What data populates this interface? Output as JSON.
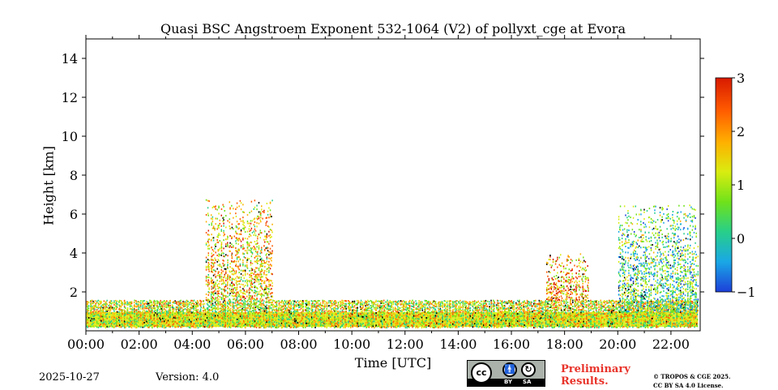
{
  "chart_data": {
    "type": "heatmap",
    "title": "Quasi BSC Angstroem Exponent 532-1064 (V2) of pollyxt_cge at Evora",
    "xlabel": "Time [UTC]",
    "ylabel": "Height [km]",
    "xlim_hours": [
      0,
      23.1
    ],
    "ylim_km": [
      0,
      15
    ],
    "x_ticks": [
      {
        "value": 0,
        "label": "00:00"
      },
      {
        "value": 2,
        "label": "02:00"
      },
      {
        "value": 4,
        "label": "04:00"
      },
      {
        "value": 6,
        "label": "06:00"
      },
      {
        "value": 8,
        "label": "08:00"
      },
      {
        "value": 10,
        "label": "10:00"
      },
      {
        "value": 12,
        "label": "12:00"
      },
      {
        "value": 14,
        "label": "14:00"
      },
      {
        "value": 16,
        "label": "16:00"
      },
      {
        "value": 18,
        "label": "18:00"
      },
      {
        "value": 20,
        "label": "20:00"
      },
      {
        "value": 22,
        "label": "22:00"
      }
    ],
    "y_ticks": [
      {
        "value": 2,
        "label": "2"
      },
      {
        "value": 4,
        "label": "4"
      },
      {
        "value": 6,
        "label": "6"
      },
      {
        "value": 8,
        "label": "8"
      },
      {
        "value": 10,
        "label": "10"
      },
      {
        "value": 12,
        "label": "12"
      },
      {
        "value": 14,
        "label": "14"
      }
    ],
    "colorbar": {
      "range": [
        -1,
        3
      ],
      "ticks": [
        {
          "value": 3,
          "label": "3"
        },
        {
          "value": 2,
          "label": "2"
        },
        {
          "value": 1,
          "label": "1"
        },
        {
          "value": 0,
          "label": "0"
        },
        {
          "value": -1,
          "label": "−1"
        }
      ],
      "colors": [
        "#1d3fd9",
        "#1aa7e6",
        "#27cf8a",
        "#6fe21a",
        "#d9ec10",
        "#ffb000",
        "#ff5a00",
        "#d81a00"
      ]
    },
    "features": [
      {
        "name": "boundary-layer",
        "t_start": 0,
        "t_end": 23,
        "h_bottom": 0.2,
        "h_top": 1.6,
        "value": 1.2
      },
      {
        "name": "morning-aerosol-plume",
        "t_start": 4.5,
        "t_end": 7,
        "h_bottom": 1.6,
        "h_top": 6.8,
        "value": 1.5
      },
      {
        "name": "evening-aerosol-layer",
        "t_start": 17.3,
        "t_end": 18.9,
        "h_bottom": 1.6,
        "h_top": 4.0,
        "value": 1.8
      },
      {
        "name": "night-aerosol-layer",
        "t_start": 20.0,
        "t_end": 23,
        "h_bottom": 1.0,
        "h_top": 6.5,
        "value": 0.5
      }
    ]
  },
  "footer": {
    "date": "2025-10-27",
    "version": "Version: 4.0",
    "license_badge": {
      "cc": "cc",
      "by": "BY",
      "sa": "SA"
    },
    "preliminary_line1": "Preliminary",
    "preliminary_line2": "Results.",
    "copyright_line1": "© TROPOS & CGE 2025.",
    "copyright_line2": "CC BY SA 4.0 License."
  }
}
